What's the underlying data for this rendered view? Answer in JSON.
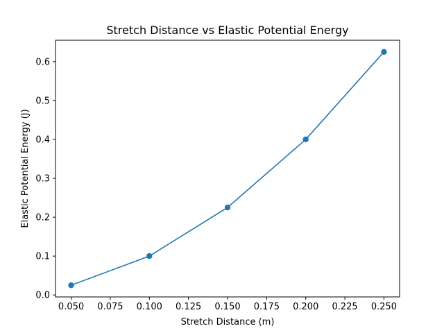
{
  "chart_data": {
    "type": "line",
    "title": "Stretch Distance vs Elastic Potential Energy",
    "xlabel": "Stretch Distance (m)",
    "ylabel": "Elastic Potential Energy (J)",
    "x": [
      0.05,
      0.1,
      0.15,
      0.2,
      0.25
    ],
    "series": [
      {
        "values": [
          0.025,
          0.1,
          0.225,
          0.4,
          0.625
        ],
        "color": "#1f77b4",
        "marker": "circle"
      }
    ],
    "xlim": [
      0.04,
      0.26
    ],
    "ylim": [
      -0.005,
      0.655
    ],
    "xticks": [
      0.05,
      0.075,
      0.1,
      0.125,
      0.15,
      0.175,
      0.2,
      0.225,
      0.25
    ],
    "xtick_labels": [
      "0.050",
      "0.075",
      "0.100",
      "0.125",
      "0.150",
      "0.175",
      "0.200",
      "0.225",
      "0.250"
    ],
    "yticks": [
      0.0,
      0.1,
      0.2,
      0.3,
      0.4,
      0.5,
      0.6
    ],
    "ytick_labels": [
      "0.0",
      "0.1",
      "0.2",
      "0.3",
      "0.4",
      "0.5",
      "0.6"
    ],
    "grid": false,
    "legend": "none"
  }
}
